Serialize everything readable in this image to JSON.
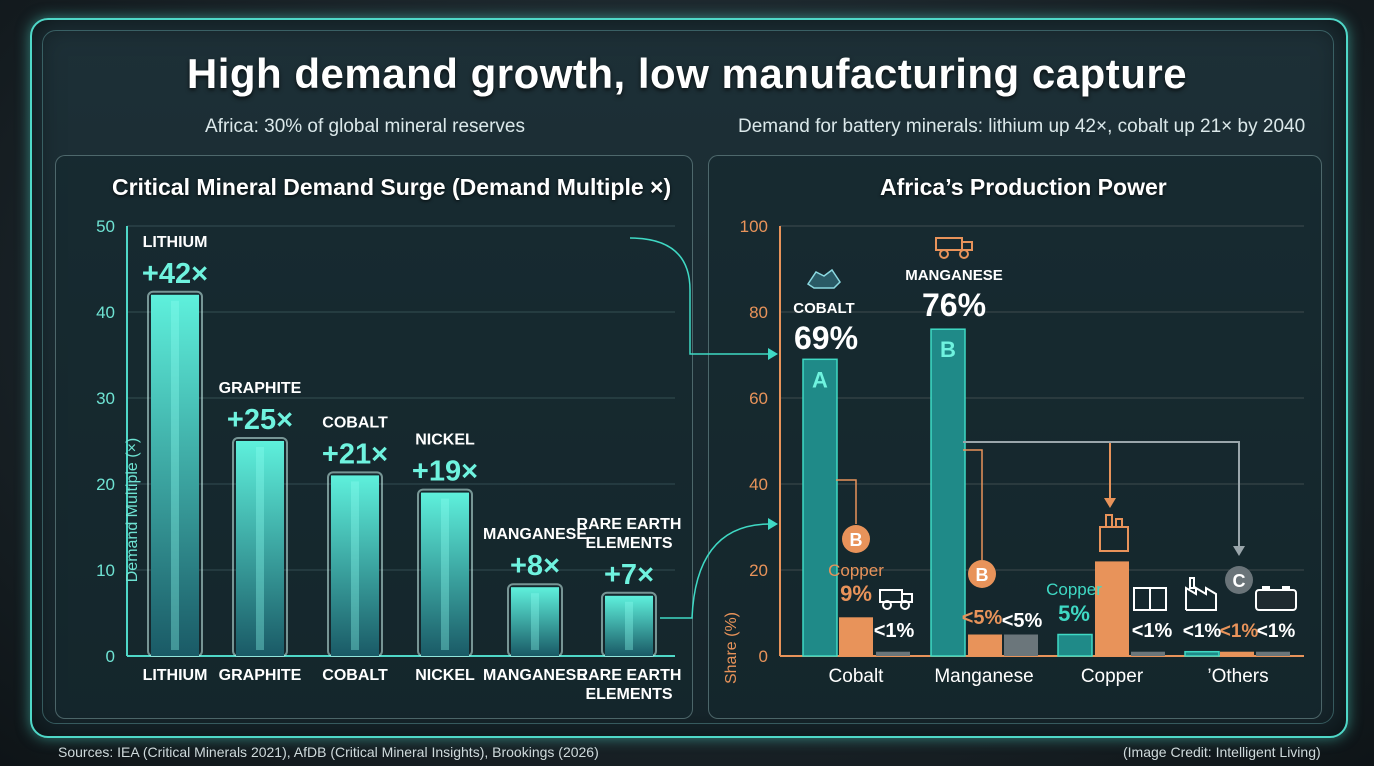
{
  "title": "High demand growth, low manufacturing capture",
  "subtitle_left": "Africa: 30% of global mineral reserves",
  "subtitle_right": "Demand for battery minerals: lithium up 42×, cobalt up 21× by 2040",
  "footer_left": "Sources: IEA (Critical Minerals 2021), AfDB (Critical Mineral Insights), Brookings (2026)",
  "footer_right": "(Image Credit: Intelligent Living)",
  "colors": {
    "teal": "#3fd9c4",
    "orange": "#e8935a",
    "gray": "#7a868b"
  },
  "chart_data": [
    {
      "type": "bar",
      "title": "Critical Mineral Demand Surge (Demand Multiple ×)",
      "ylabel": "Demand Multiple (×)",
      "ylim": [
        0,
        50
      ],
      "yticks": [
        "0",
        "10",
        "20",
        "30",
        "40",
        "50"
      ],
      "grid": true,
      "categories": [
        "LITHIUM",
        "GRAPHITE",
        "COBALT",
        "NICKEL",
        "MANGANESE",
        "RARE EARTH ELEMENTS"
      ],
      "values": [
        42,
        25,
        21,
        19,
        8,
        7
      ],
      "annotations": [
        {
          "name": "LITHIUM",
          "value_label": "+42×"
        },
        {
          "name": "GRAPHITE",
          "value_label": "+25×"
        },
        {
          "name": "COBALT",
          "value_label": "+21×"
        },
        {
          "name": "NICKEL",
          "value_label": "+19×"
        },
        {
          "name": "MANGANESE",
          "value_label": "+8×"
        },
        {
          "name": "RARE EARTH ELEMENTS",
          "value_label": "+7×"
        }
      ]
    },
    {
      "type": "bar",
      "title": "Africa’s Production Power",
      "ylabel": "Share (%)",
      "ylim": [
        0,
        100
      ],
      "yticks": [
        "0",
        "20",
        "40",
        "60",
        "80",
        "100"
      ],
      "grid": true,
      "categories": [
        "Cobalt",
        "Manganese",
        "Copper",
        "’Others"
      ],
      "groups": [
        {
          "category": "Cobalt",
          "values": [
            69,
            9,
            1
          ],
          "labels": [
            "COBALT 69%",
            "Copper 9%",
            "<1%"
          ],
          "markers": [
            "A",
            "B",
            ""
          ]
        },
        {
          "category": "Manganese",
          "values": [
            76,
            5,
            5
          ],
          "labels": [
            "MANGANESE 76%",
            "<5%",
            "<5%"
          ],
          "markers": [
            "B",
            "B",
            ""
          ]
        },
        {
          "category": "Copper",
          "values": [
            5,
            22,
            1
          ],
          "labels": [
            "Copper 5%",
            "",
            "<1%"
          ],
          "markers": [
            "",
            "",
            ""
          ]
        },
        {
          "category": "’Others",
          "values": [
            1,
            1,
            1
          ],
          "labels": [
            "<1%",
            "<1%",
            "<1%"
          ],
          "markers": [
            "C",
            "",
            ""
          ]
        }
      ],
      "callouts": {
        "cobalt_name": "COBALT",
        "cobalt_value": "69%",
        "manganese_name": "MANGANESE",
        "manganese_value": "76%",
        "copper_name": "Copper",
        "copper_value_9": "9%",
        "copper_value_5": "5%",
        "lt1": "<1%",
        "lt5": "<5%",
        "marker_a": "A",
        "marker_b": "B",
        "marker_c": "C"
      }
    }
  ]
}
